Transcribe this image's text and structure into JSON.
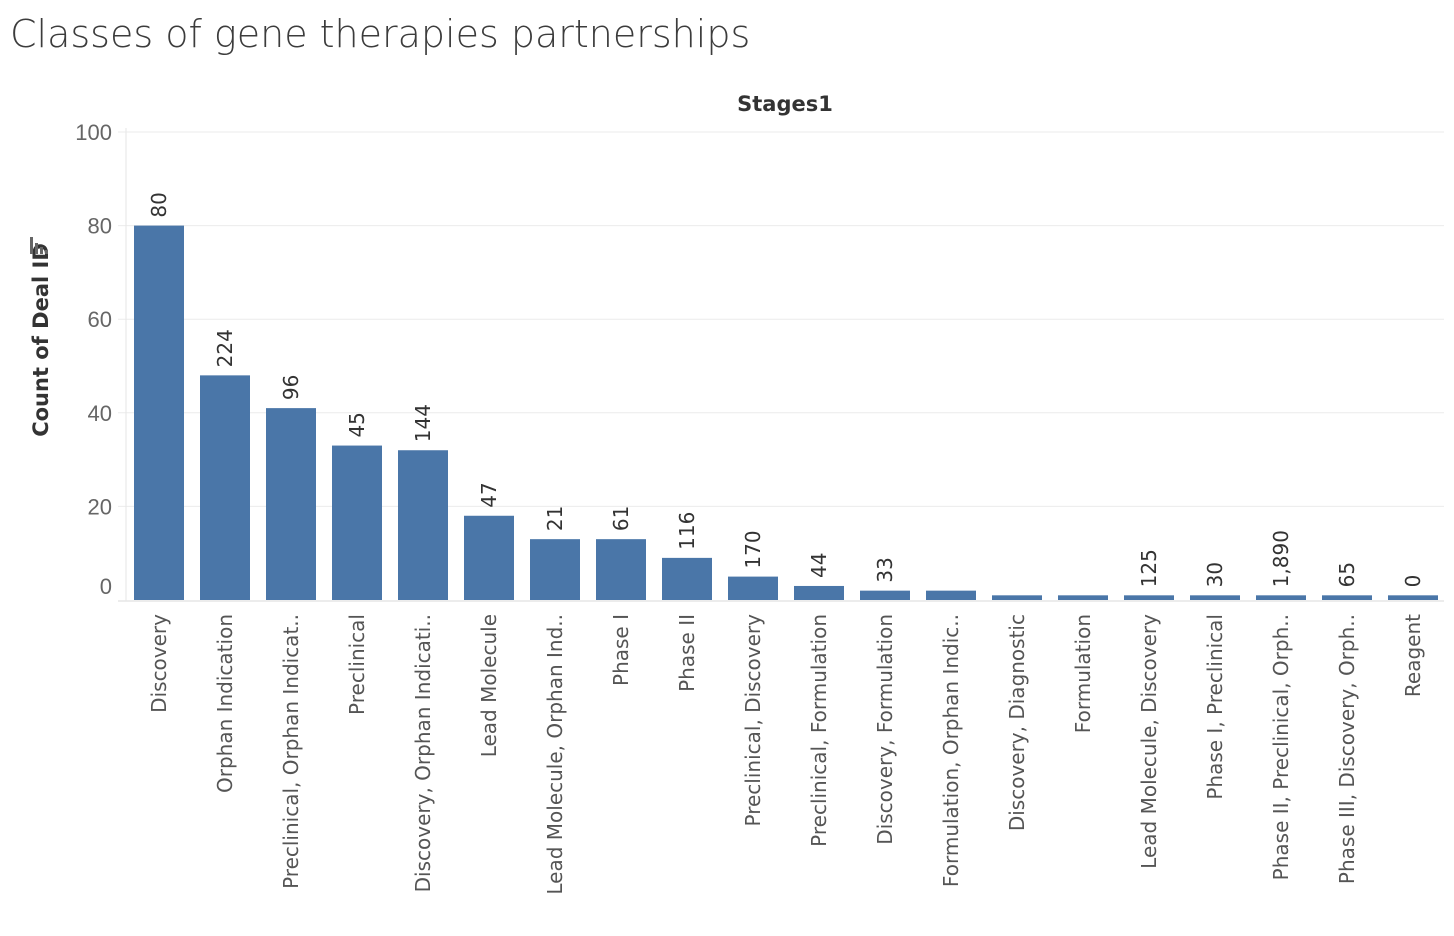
{
  "title": "Classes of gene therapies partnerships",
  "chart_data": {
    "type": "bar",
    "column_header": "Stages1",
    "ylabel": "Count of Deal ID",
    "ylim": [
      0,
      100
    ],
    "yticks": [
      0,
      20,
      40,
      60,
      80,
      100
    ],
    "grid": true,
    "color": "#4a76a8",
    "categories": [
      "Discovery",
      "Orphan Indication",
      "Preclinical, Orphan Indicat..",
      "Preclinical",
      "Discovery, Orphan Indicati..",
      "Lead Molecule",
      "Lead Molecule, Orphan Ind..",
      "Phase I",
      "Phase II",
      "Preclinical, Discovery",
      "Preclinical, Formulation",
      "Discovery, Formulation",
      "Formulation, Orphan Indic..",
      "Discovery, Diagnostic",
      "Formulation",
      "Lead Molecule, Discovery",
      "Phase I, Preclinical",
      "Phase II, Preclinical, Orph..",
      "Phase III, Discovery, Orph..",
      "Reagent"
    ],
    "values": [
      80,
      48,
      41,
      33,
      32,
      18,
      13,
      13,
      9,
      5,
      3,
      2,
      2,
      1,
      1,
      1,
      1,
      1,
      1,
      1
    ],
    "data_labels": [
      "80",
      "224",
      "96",
      "45",
      "144",
      "47",
      "21",
      "61",
      "116",
      "170",
      "44",
      "33",
      "",
      "",
      "",
      "125",
      "30",
      "1,890",
      "65",
      "0"
    ]
  }
}
